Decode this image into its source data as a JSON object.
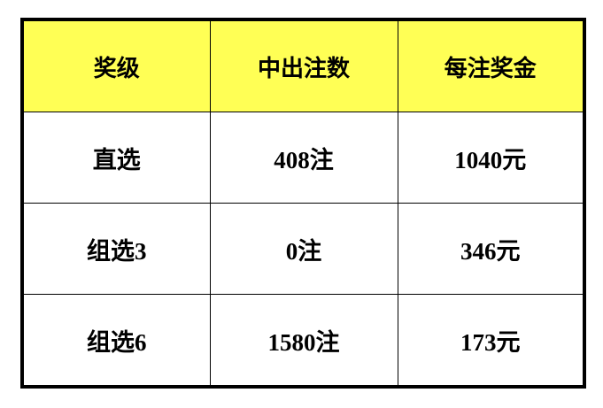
{
  "colors": {
    "header_bg": "#ffff55",
    "border": "#000000"
  },
  "table": {
    "headers": [
      "奖级",
      "中出注数",
      "每注奖金"
    ],
    "rows": [
      [
        "直选",
        "408注",
        "1040元"
      ],
      [
        "组选3",
        "0注",
        "346元"
      ],
      [
        "组选6",
        "1580注",
        "173元"
      ]
    ]
  }
}
